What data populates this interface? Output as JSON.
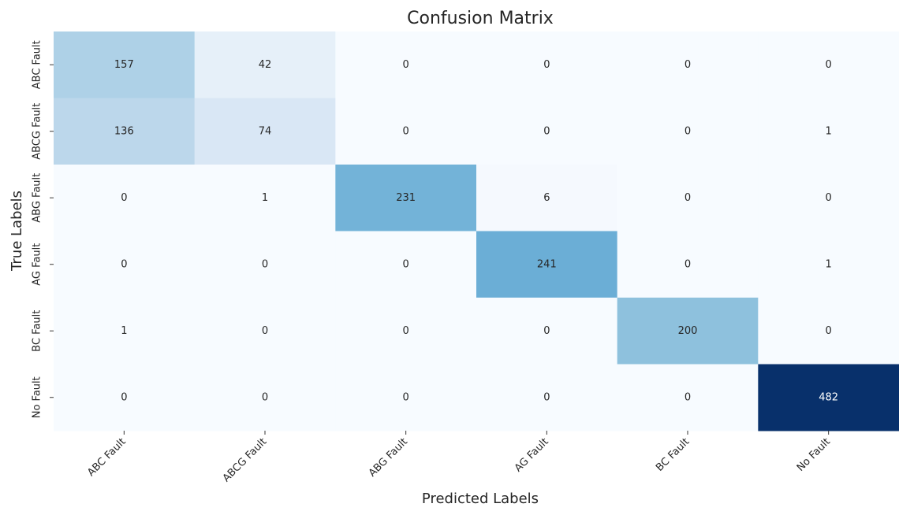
{
  "chart_data": {
    "type": "heatmap",
    "title": "Confusion Matrix",
    "x_label": "Predicted Labels",
    "y_label": "True Labels",
    "x_categories": [
      "ABC Fault",
      "ABCG Fault",
      "ABG Fault",
      "AG Fault",
      "BC Fault",
      "No Fault"
    ],
    "y_categories": [
      "ABC Fault",
      "ABCG Fault",
      "ABG Fault",
      "AG Fault",
      "BC Fault",
      "No Fault"
    ],
    "values": [
      [
        157,
        42,
        0,
        0,
        0,
        0
      ],
      [
        136,
        74,
        0,
        0,
        0,
        1
      ],
      [
        0,
        1,
        231,
        6,
        0,
        0
      ],
      [
        0,
        0,
        0,
        241,
        0,
        1
      ],
      [
        1,
        0,
        0,
        0,
        200,
        0
      ],
      [
        0,
        0,
        0,
        0,
        0,
        482
      ]
    ],
    "colormap": [
      "#f7fbff",
      "#deebf7",
      "#c6dbef",
      "#9ecae1",
      "#6baed6",
      "#4292c6",
      "#2171b5",
      "#08519c",
      "#08306b"
    ]
  }
}
